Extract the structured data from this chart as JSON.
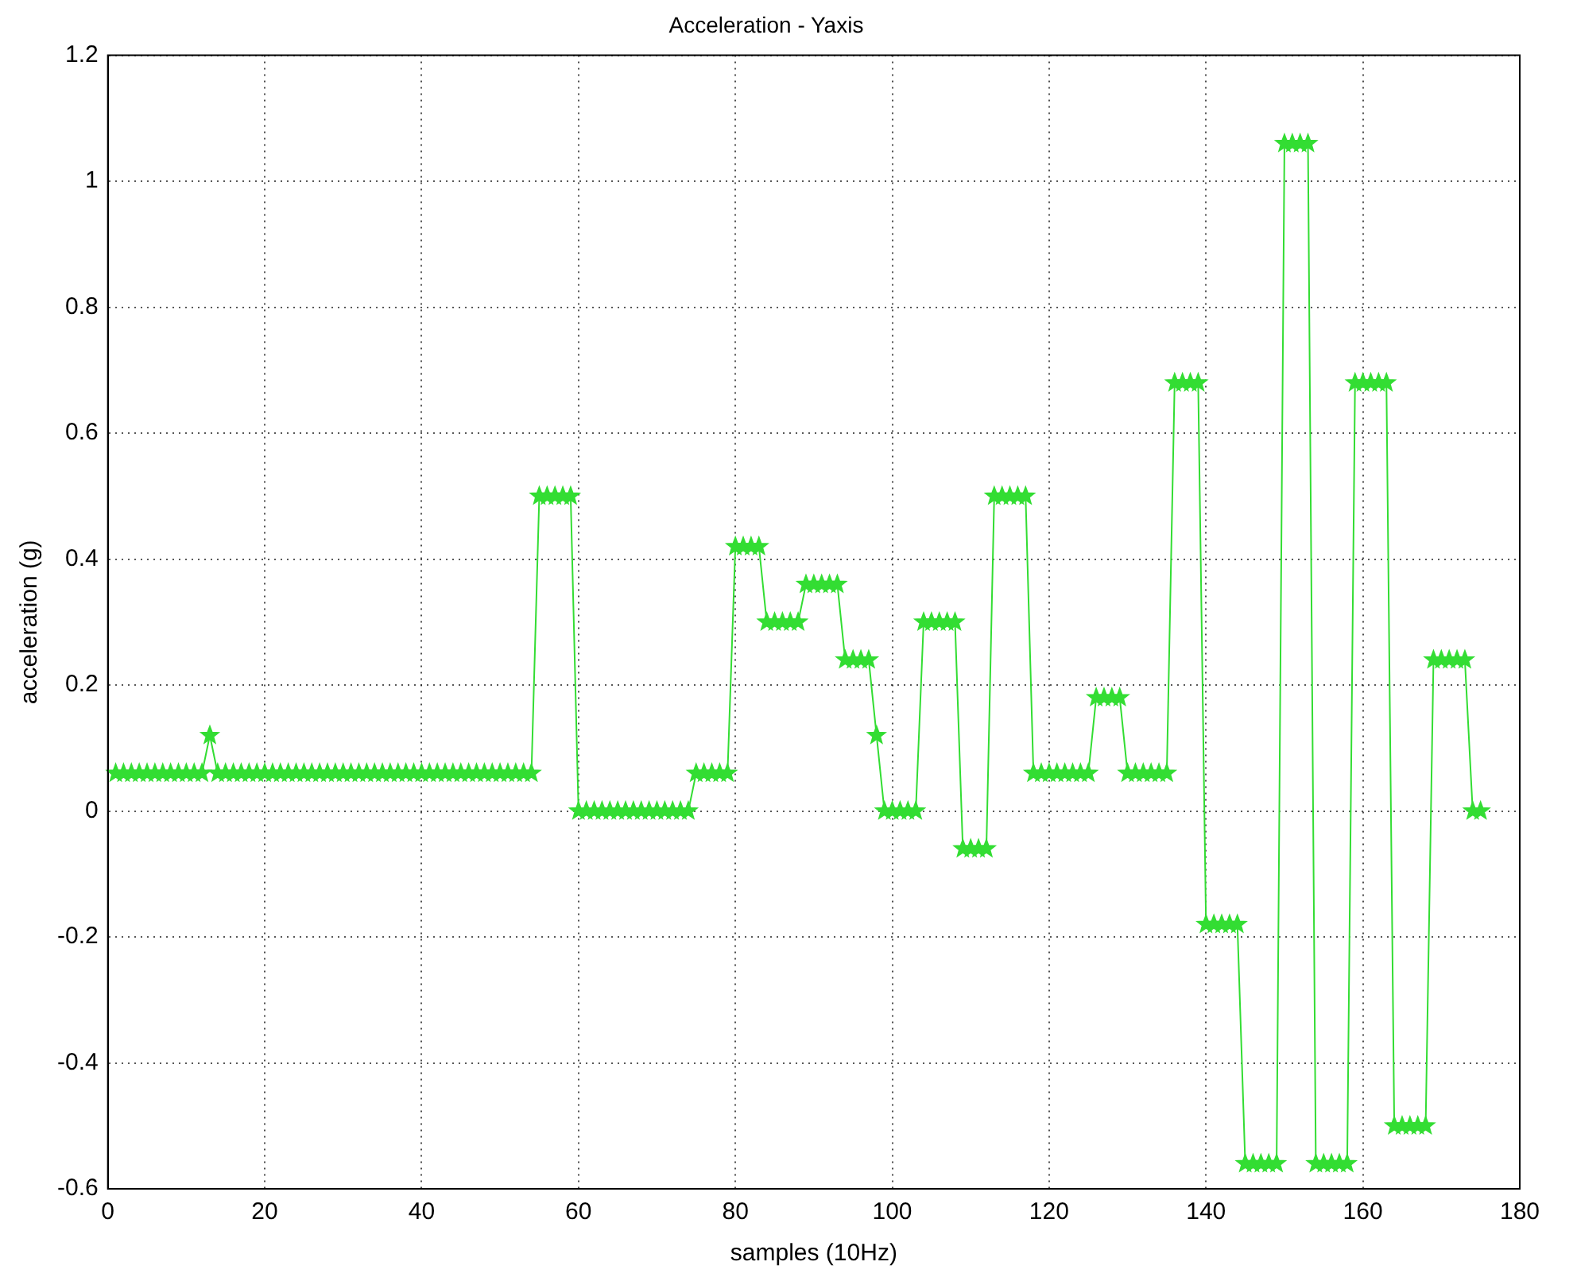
{
  "chart_data": {
    "type": "line",
    "title": "Acceleration - Yaxis",
    "xlabel": "samples (10Hz)",
    "ylabel": "acceleration (g)",
    "x": [
      1,
      2,
      3,
      4,
      5,
      6,
      7,
      8,
      9,
      10,
      11,
      12,
      13,
      14,
      15,
      16,
      17,
      18,
      19,
      20,
      21,
      22,
      23,
      24,
      25,
      26,
      27,
      28,
      29,
      30,
      31,
      32,
      33,
      34,
      35,
      36,
      37,
      38,
      39,
      40,
      41,
      42,
      43,
      44,
      45,
      46,
      47,
      48,
      49,
      50,
      51,
      52,
      53,
      54,
      55,
      56,
      57,
      58,
      59,
      60,
      61,
      62,
      63,
      64,
      65,
      66,
      67,
      68,
      69,
      70,
      71,
      72,
      73,
      74,
      75,
      76,
      77,
      78,
      79,
      80,
      81,
      82,
      83,
      84,
      85,
      86,
      87,
      88,
      89,
      90,
      91,
      92,
      93,
      94,
      95,
      96,
      97,
      98,
      99,
      100,
      101,
      102,
      103,
      104,
      105,
      106,
      107,
      108,
      109,
      110,
      111,
      112,
      113,
      114,
      115,
      116,
      117,
      118,
      119,
      120,
      121,
      122,
      123,
      124,
      125,
      126,
      127,
      128,
      129,
      130,
      131,
      132,
      133,
      134,
      135,
      136,
      137,
      138,
      139,
      140,
      141,
      142,
      143,
      144,
      145,
      146,
      147,
      148,
      149,
      150,
      151,
      152,
      153,
      154,
      155,
      156,
      157,
      158,
      159,
      160,
      161,
      162,
      163,
      164,
      165,
      166,
      167,
      168,
      169,
      170,
      171,
      172,
      173,
      174,
      175
    ],
    "series": [
      {
        "color": "#33dd33",
        "values": [
          0.06,
          0.06,
          0.06,
          0.06,
          0.06,
          0.06,
          0.06,
          0.06,
          0.06,
          0.06,
          0.06,
          0.06,
          0.12,
          0.06,
          0.06,
          0.06,
          0.06,
          0.06,
          0.06,
          0.06,
          0.06,
          0.06,
          0.06,
          0.06,
          0.06,
          0.06,
          0.06,
          0.06,
          0.06,
          0.06,
          0.06,
          0.06,
          0.06,
          0.06,
          0.06,
          0.06,
          0.06,
          0.06,
          0.06,
          0.06,
          0.06,
          0.06,
          0.06,
          0.06,
          0.06,
          0.06,
          0.06,
          0.06,
          0.06,
          0.06,
          0.06,
          0.06,
          0.06,
          0.06,
          0.5,
          0.5,
          0.5,
          0.5,
          0.5,
          0,
          0,
          0,
          0,
          0,
          0,
          0,
          0,
          0,
          0,
          0,
          0,
          0,
          0,
          0,
          0.06,
          0.06,
          0.06,
          0.06,
          0.06,
          0.42,
          0.42,
          0.42,
          0.42,
          0.3,
          0.3,
          0.3,
          0.3,
          0.3,
          0.36,
          0.36,
          0.36,
          0.36,
          0.36,
          0.24,
          0.24,
          0.24,
          0.24,
          0.12,
          0,
          0,
          0,
          0,
          0,
          0.3,
          0.3,
          0.3,
          0.3,
          0.3,
          -0.06,
          -0.06,
          -0.06,
          -0.06,
          0.5,
          0.5,
          0.5,
          0.5,
          0.5,
          0.06,
          0.06,
          0.06,
          0.06,
          0.06,
          0.06,
          0.06,
          0.06,
          0.18,
          0.18,
          0.18,
          0.18,
          0.06,
          0.06,
          0.06,
          0.06,
          0.06,
          0.06,
          0.68,
          0.68,
          0.68,
          0.68,
          -0.18,
          -0.18,
          -0.18,
          -0.18,
          -0.18,
          -0.56,
          -0.56,
          -0.56,
          -0.56,
          -0.56,
          1.06,
          1.06,
          1.06,
          1.06,
          -0.56,
          -0.56,
          -0.56,
          -0.56,
          -0.56,
          0.68,
          0.68,
          0.68,
          0.68,
          0.68,
          -0.5,
          -0.5,
          -0.5,
          -0.5,
          -0.5,
          0.24,
          0.24,
          0.24,
          0.24,
          0.24,
          0,
          0
        ]
      }
    ],
    "xlim": [
      0,
      180
    ],
    "xticks": [
      0,
      20,
      40,
      60,
      80,
      100,
      120,
      140,
      160,
      180
    ],
    "ylim": [
      -0.6,
      1.2
    ],
    "yticks": [
      -0.6,
      -0.4,
      -0.2,
      0,
      0.2,
      0.4,
      0.6,
      0.8,
      1,
      1.2
    ],
    "grid": true,
    "legend": false,
    "marker": "star",
    "line_style": "solid"
  }
}
